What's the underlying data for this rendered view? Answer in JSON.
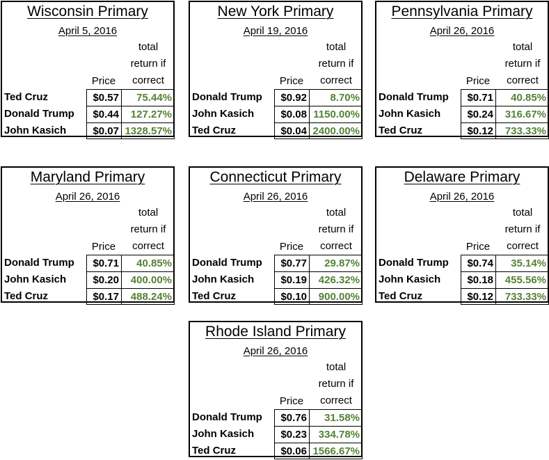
{
  "headers": {
    "price": "Price",
    "return_lines": [
      "total",
      "return if",
      "correct"
    ]
  },
  "cards": [
    {
      "title": "Wisconsin Primary",
      "date": "April 5, 2016",
      "rows": [
        {
          "candidate": "Ted Cruz",
          "price": "$0.57",
          "return": "75.44%"
        },
        {
          "candidate": "Donald Trump",
          "price": "$0.44",
          "return": "127.27%"
        },
        {
          "candidate": "John Kasich",
          "price": "$0.07",
          "return": "1328.57%"
        }
      ]
    },
    {
      "title": "New York Primary",
      "date": "April 19, 2016",
      "rows": [
        {
          "candidate": "Donald Trump",
          "price": "$0.92",
          "return": "8.70%"
        },
        {
          "candidate": "John Kasich",
          "price": "$0.08",
          "return": "1150.00%"
        },
        {
          "candidate": "Ted Cruz",
          "price": "$0.04",
          "return": "2400.00%"
        }
      ]
    },
    {
      "title": "Pennsylvania Primary",
      "date": "April 26, 2016",
      "rows": [
        {
          "candidate": "Donald Trump",
          "price": "$0.71",
          "return": "40.85%"
        },
        {
          "candidate": "John Kasich",
          "price": "$0.24",
          "return": "316.67%"
        },
        {
          "candidate": "Ted Cruz",
          "price": "$0.12",
          "return": "733.33%"
        }
      ]
    },
    {
      "title": "Maryland Primary",
      "date": "April 26, 2016",
      "rows": [
        {
          "candidate": "Donald Trump",
          "price": "$0.71",
          "return": "40.85%"
        },
        {
          "candidate": "John Kasich",
          "price": "$0.20",
          "return": "400.00%"
        },
        {
          "candidate": "Ted Cruz",
          "price": "$0.17",
          "return": "488.24%"
        }
      ]
    },
    {
      "title": "Connecticut Primary",
      "date": "April 26, 2016",
      "rows": [
        {
          "candidate": "Donald Trump",
          "price": "$0.77",
          "return": "29.87%"
        },
        {
          "candidate": "John Kasich",
          "price": "$0.19",
          "return": "426.32%"
        },
        {
          "candidate": "Ted Cruz",
          "price": "$0.10",
          "return": "900.00%"
        }
      ]
    },
    {
      "title": "Delaware Primary",
      "date": "April 26, 2016",
      "rows": [
        {
          "candidate": "Donald Trump",
          "price": "$0.74",
          "return": "35.14%"
        },
        {
          "candidate": "John Kasich",
          "price": "$0.18",
          "return": "455.56%"
        },
        {
          "candidate": "Ted Cruz",
          "price": "$0.12",
          "return": "733.33%"
        }
      ]
    },
    {
      "title": "Rhode Island Primary",
      "date": "April 26, 2016",
      "rows": [
        {
          "candidate": "Donald Trump",
          "price": "$0.76",
          "return": "31.58%"
        },
        {
          "candidate": "John Kasich",
          "price": "$0.23",
          "return": "334.78%"
        },
        {
          "candidate": "Ted Cruz",
          "price": "$0.06",
          "return": "1566.67%"
        }
      ]
    }
  ],
  "colors": {
    "return_text": "#548235",
    "border": "#000000"
  }
}
